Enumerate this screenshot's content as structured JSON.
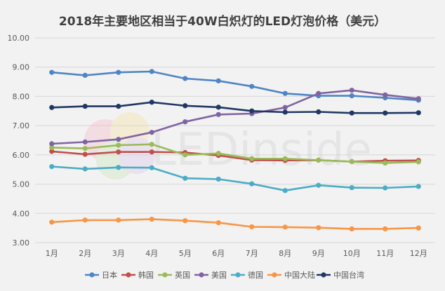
{
  "chart_data": {
    "type": "line",
    "title": "2018年主要地区相当于40W白炽灯的LED灯泡价格（美元）",
    "categories": [
      "1月",
      "2月",
      "3月",
      "4月",
      "5月",
      "6月",
      "7月",
      "8月",
      "9月",
      "10月",
      "11月",
      "12月"
    ],
    "ylim": [
      3.0,
      10.0
    ],
    "yticks": [
      "3.00",
      "4.00",
      "5.00",
      "6.00",
      "7.00",
      "8.00",
      "9.00",
      "10.00"
    ],
    "grid": true,
    "legend_position": "bottom",
    "watermark": "LEDinside",
    "series": [
      {
        "name": "日本",
        "color": "#4e85c5",
        "values": [
          8.82,
          8.72,
          8.82,
          8.85,
          8.61,
          8.53,
          8.34,
          8.1,
          8.02,
          8.02,
          7.95,
          7.87
        ]
      },
      {
        "name": "韩国",
        "color": "#c0504d",
        "values": [
          6.12,
          6.02,
          6.1,
          6.1,
          6.08,
          5.98,
          5.82,
          5.81,
          5.82,
          5.77,
          5.8,
          5.81
        ]
      },
      {
        "name": "英国",
        "color": "#9bbb59",
        "values": [
          6.25,
          6.22,
          6.33,
          6.36,
          6.0,
          6.05,
          5.87,
          5.87,
          5.82,
          5.77,
          5.72,
          5.76
        ]
      },
      {
        "name": "美国",
        "color": "#8064a2",
        "values": [
          6.38,
          6.44,
          6.53,
          6.77,
          7.13,
          7.38,
          7.41,
          7.62,
          8.1,
          8.21,
          8.05,
          7.92
        ]
      },
      {
        "name": "德国",
        "color": "#4bacc6",
        "values": [
          5.6,
          5.52,
          5.57,
          5.56,
          5.2,
          5.17,
          5.01,
          4.78,
          4.96,
          4.88,
          4.87,
          4.92
        ]
      },
      {
        "name": "中国大陆",
        "color": "#f79646",
        "values": [
          3.7,
          3.77,
          3.77,
          3.8,
          3.75,
          3.68,
          3.54,
          3.53,
          3.51,
          3.47,
          3.47,
          3.5
        ]
      },
      {
        "name": "中国台湾",
        "color": "#1f3864",
        "values": [
          7.62,
          7.66,
          7.66,
          7.8,
          7.68,
          7.63,
          7.5,
          7.46,
          7.47,
          7.43,
          7.43,
          7.44
        ]
      }
    ]
  }
}
